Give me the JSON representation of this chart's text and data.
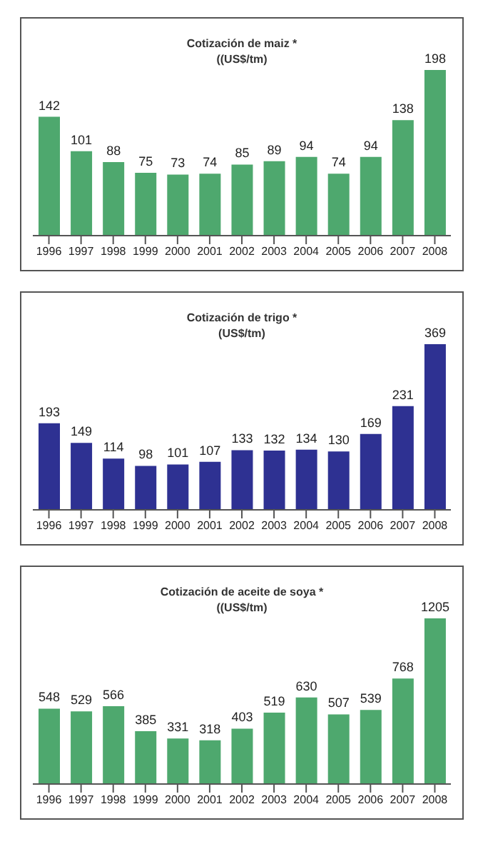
{
  "chart_data": [
    {
      "type": "bar",
      "title": "Cotización de maiz *",
      "subtitle": "((US$/tm)",
      "categories": [
        "1996",
        "1997",
        "1998",
        "1999",
        "2000",
        "2001",
        "2002",
        "2003",
        "2004",
        "2005",
        "2006",
        "2007",
        "2008"
      ],
      "values": [
        142,
        101,
        88,
        75,
        73,
        74,
        85,
        89,
        94,
        74,
        94,
        138,
        198
      ],
      "color": "#4ea86e",
      "data_labels": true,
      "grid": false,
      "legend": false
    },
    {
      "type": "bar",
      "title": "Cotización de trigo *",
      "subtitle": "(US$/tm)",
      "categories": [
        "1996",
        "1997",
        "1998",
        "1999",
        "2000",
        "2001",
        "2002",
        "2003",
        "2004",
        "2005",
        "2006",
        "2007",
        "2008"
      ],
      "values": [
        193,
        149,
        114,
        98,
        101,
        107,
        133,
        132,
        134,
        130,
        169,
        231,
        369
      ],
      "color": "#2e3192",
      "data_labels": true,
      "grid": false,
      "legend": false
    },
    {
      "type": "bar",
      "title": "Cotización de aceite de soya *",
      "subtitle": "((US$/tm)",
      "categories": [
        "1996",
        "1997",
        "1998",
        "1999",
        "2000",
        "2001",
        "2002",
        "2003",
        "2004",
        "2005",
        "2006",
        "2007",
        "2008"
      ],
      "values": [
        548,
        529,
        566,
        385,
        331,
        318,
        403,
        519,
        630,
        507,
        539,
        768,
        1205
      ],
      "color": "#4ea86e",
      "data_labels": true,
      "grid": false,
      "legend": false
    }
  ]
}
